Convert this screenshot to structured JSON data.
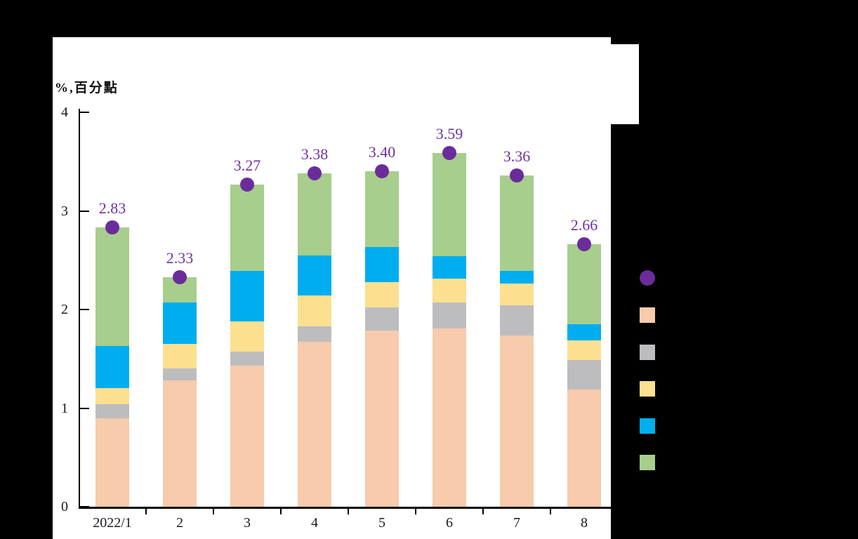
{
  "background_color": "#000000",
  "panel_color": "#FFFFFF",
  "chart_data": {
    "type": "bar",
    "subtype": "stacked-column-with-total-line-markers",
    "title": "",
    "axis_unit_label": "%,百分點",
    "categories": [
      "2022/1",
      "2",
      "3",
      "4",
      "5",
      "6",
      "7",
      "8"
    ],
    "series": [
      {
        "name": "component-peach",
        "color": "#F7CBAC",
        "values": [
          0.9,
          1.28,
          1.43,
          1.67,
          1.79,
          1.81,
          1.74,
          1.19
        ]
      },
      {
        "name": "component-gray",
        "color": "#BDBDBF",
        "values": [
          0.14,
          0.12,
          0.14,
          0.16,
          0.23,
          0.26,
          0.3,
          0.3
        ]
      },
      {
        "name": "component-yellow",
        "color": "#FCE08F",
        "values": [
          0.16,
          0.25,
          0.31,
          0.31,
          0.26,
          0.24,
          0.22,
          0.2
        ]
      },
      {
        "name": "component-blue",
        "color": "#00AEEF",
        "values": [
          0.43,
          0.42,
          0.51,
          0.41,
          0.35,
          0.23,
          0.13,
          0.16
        ]
      },
      {
        "name": "component-green",
        "color": "#A7CE8D",
        "values": [
          1.2,
          0.26,
          0.88,
          0.83,
          0.77,
          1.05,
          0.97,
          0.81
        ]
      }
    ],
    "total_series": {
      "name": "total",
      "marker": "circle",
      "color": "#6B2C9B",
      "label_color": "#7030A0",
      "values": [
        2.83,
        2.33,
        3.27,
        3.38,
        3.4,
        3.59,
        3.36,
        2.66
      ],
      "labels": [
        "2.83",
        "2.33",
        "3.27",
        "3.38",
        "3.40",
        "3.59",
        "3.36",
        "2.66"
      ]
    },
    "y_ticks": [
      "0",
      "1",
      "2",
      "3",
      "4"
    ],
    "ylim": [
      0,
      4
    ],
    "grid": false,
    "axis_color": "#000000",
    "tick_label_color": "#1a1a24",
    "legend_position": "right-outside-markers-only"
  },
  "legend": {
    "markers": [
      {
        "shape": "circle",
        "color": "#6B2C9B",
        "name": "total-marker"
      },
      {
        "shape": "square",
        "color": "#F7CBAC",
        "name": "peach-series-marker"
      },
      {
        "shape": "square",
        "color": "#BDBDBF",
        "name": "gray-series-marker"
      },
      {
        "shape": "square",
        "color": "#FCE08F",
        "name": "yellow-series-marker"
      },
      {
        "shape": "square",
        "color": "#00AEEF",
        "name": "blue-series-marker"
      },
      {
        "shape": "square",
        "color": "#A7CE8D",
        "name": "green-series-marker"
      }
    ]
  }
}
